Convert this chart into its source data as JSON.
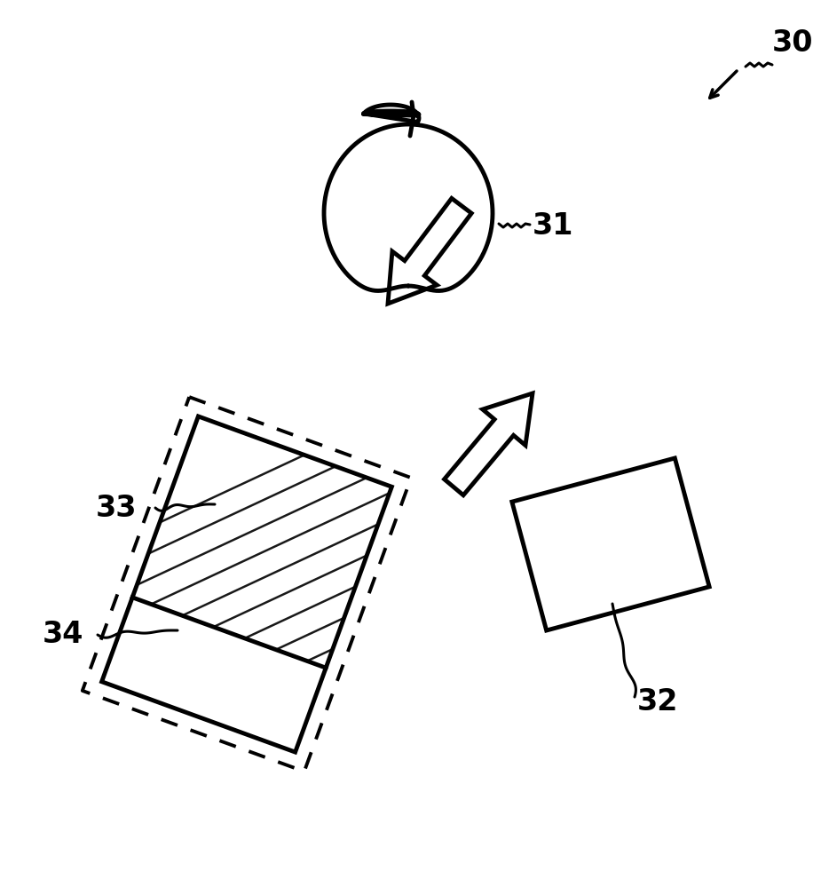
{
  "bg_color": "#ffffff",
  "line_color": "#000000",
  "label_30": "30",
  "label_31": "31",
  "label_32": "32",
  "label_33": "33",
  "label_34": "34",
  "label_fontsize": 24,
  "label_fontweight": "bold",
  "fig_width": 9.25,
  "fig_height": 9.9,
  "dpi": 100
}
